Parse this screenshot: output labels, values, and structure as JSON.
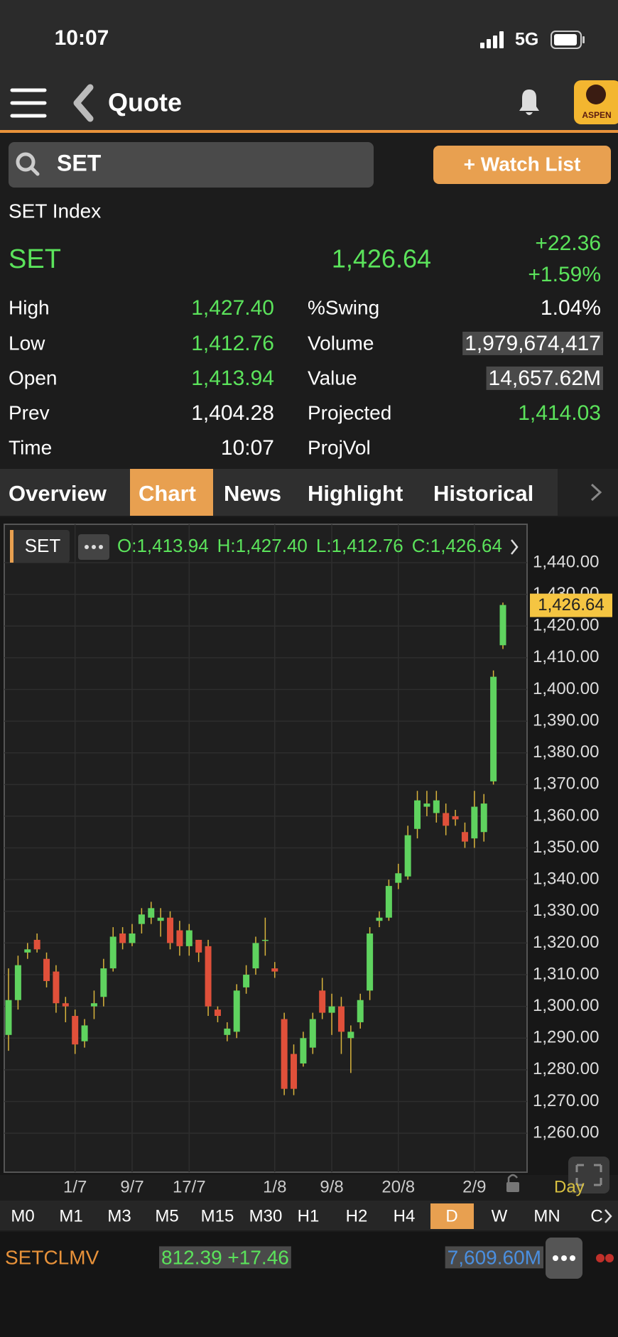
{
  "status_bar": {
    "time": "10:07",
    "network": "5G"
  },
  "nav": {
    "title": "Quote",
    "logo": "ASPEN"
  },
  "search": {
    "query": "SET",
    "button": "+ Watch List"
  },
  "quote": {
    "name": "SET Index",
    "symbol": "SET",
    "price": "1,426.64",
    "change": "+22.36",
    "change_pct": "+1.59%",
    "stats": [
      {
        "label": "High",
        "value": "1,427.40",
        "color": "#5be35b"
      },
      {
        "label": "%Swing",
        "value": "1.04%",
        "color": "#ffffff"
      },
      {
        "label": "Low",
        "value": "1,412.76",
        "color": "#5be35b"
      },
      {
        "label": "Volume",
        "value": "1,979,674,417",
        "color": "#ffffff",
        "highlight": true
      },
      {
        "label": "Open",
        "value": "1,413.94",
        "color": "#5be35b"
      },
      {
        "label": "Value",
        "value": "14,657.62M",
        "color": "#ffffff",
        "highlight": true
      },
      {
        "label": "Prev",
        "value": "1,404.28",
        "color": "#ffffff"
      },
      {
        "label": "Projected",
        "value": "1,414.03",
        "color": "#5be35b"
      },
      {
        "label": "Time",
        "value": "10:07",
        "color": "#ffffff"
      },
      {
        "label": "ProjVol"
      }
    ]
  },
  "tabs": [
    "Overview",
    "Chart",
    "News",
    "Highlight",
    "Historical"
  ],
  "chart_data": {
    "type": "candlestick",
    "symbol": "SET",
    "legend_ohlc": [
      "O:1,413.94",
      "H:1,427.40",
      "L:1,412.76",
      "C:1,426.64"
    ],
    "categories": [
      null,
      null,
      null,
      null,
      null,
      null,
      null,
      "1/7",
      null,
      null,
      null,
      null,
      null,
      "9/7",
      null,
      null,
      null,
      null,
      null,
      "17/7",
      null,
      null,
      null,
      null,
      null,
      null,
      null,
      null,
      "1/8",
      null,
      null,
      null,
      null,
      null,
      "9/8",
      null,
      null,
      null,
      null,
      null,
      null,
      "20/8",
      null,
      null,
      null,
      null,
      null,
      null,
      null,
      "2/9",
      null,
      null,
      null
    ],
    "open": [
      1291,
      1302,
      1317,
      1321,
      1315,
      1311,
      1301,
      1297,
      1289,
      1300,
      1303,
      1312,
      1323,
      1320,
      1326,
      1328,
      1327,
      1328,
      1324,
      1319,
      1321,
      1319,
      1299,
      1291,
      1292,
      1306,
      1312,
      1321,
      1312,
      1296,
      1285,
      1282,
      1287,
      1305,
      1298,
      1300,
      1290,
      1295,
      1305,
      1327,
      1328,
      1339,
      1341,
      1356,
      1363,
      1361,
      1361,
      1360,
      1355,
      1353,
      1355,
      1371,
      1413.94
    ],
    "high": [
      1312,
      1316,
      1320,
      1323,
      1317,
      1313,
      1303,
      1299,
      1296,
      1305,
      1315,
      1325,
      1325,
      1326,
      1331,
      1333,
      1331,
      1330,
      1327,
      1326,
      1321,
      1321,
      1300,
      1295,
      1307,
      1313,
      1322,
      1328,
      1314,
      1298,
      1288,
      1292,
      1298,
      1309,
      1304,
      1303,
      1294,
      1304,
      1325,
      1330,
      1340,
      1345,
      1357,
      1368,
      1368,
      1368,
      1364,
      1362,
      1358,
      1368,
      1367,
      1406,
      1427.4
    ],
    "low": [
      1286,
      1299,
      1315,
      1317,
      1306,
      1298,
      1295,
      1285,
      1287,
      1296,
      1300,
      1311,
      1318,
      1319,
      1323,
      1326,
      1322,
      1318,
      1316,
      1316,
      1314,
      1297,
      1295,
      1289,
      1290,
      1304,
      1310,
      1316,
      1309,
      1272,
      1272,
      1281,
      1285,
      1296,
      1291,
      1285,
      1279,
      1293,
      1302,
      1325,
      1327,
      1337,
      1340,
      1353,
      1360,
      1358,
      1354,
      1357,
      1350,
      1350,
      1352,
      1370,
      1412.76
    ],
    "close": [
      1302,
      1313,
      1318,
      1318,
      1308,
      1301,
      1300,
      1288,
      1294,
      1301,
      1312,
      1322,
      1320,
      1323,
      1329,
      1331,
      1328,
      1320,
      1319,
      1324,
      1317,
      1300,
      1297,
      1293,
      1305,
      1310,
      1320,
      1321,
      1311,
      1274,
      1274,
      1290,
      1296,
      1298,
      1300,
      1292,
      1292,
      1302,
      1323,
      1328,
      1338,
      1342,
      1354,
      1365,
      1364,
      1365,
      1357,
      1359,
      1352,
      1363,
      1364,
      1404,
      1426.64
    ],
    "up_color": "#5fd35f",
    "down_color": "#e0503a",
    "wick_color": "#d9b43c",
    "ylim": [
      1247.7,
      1452.1
    ],
    "yticks": [
      {
        "value": 1260,
        "label": "1,260.00"
      },
      {
        "value": 1270,
        "label": "1,270.00"
      },
      {
        "value": 1280,
        "label": "1,280.00"
      },
      {
        "value": 1290,
        "label": "1,290.00"
      },
      {
        "value": 1300,
        "label": "1,300.00"
      },
      {
        "value": 1310,
        "label": "1,310.00"
      },
      {
        "value": 1320,
        "label": "1,320.00"
      },
      {
        "value": 1330,
        "label": "1,330.00"
      },
      {
        "value": 1340,
        "label": "1,340.00"
      },
      {
        "value": 1350,
        "label": "1,350.00"
      },
      {
        "value": 1360,
        "label": "1,360.00"
      },
      {
        "value": 1370,
        "label": "1,370.00"
      },
      {
        "value": 1380,
        "label": "1,380.00"
      },
      {
        "value": 1390,
        "label": "1,390.00"
      },
      {
        "value": 1400,
        "label": "1,400.00"
      },
      {
        "value": 1410,
        "label": "1,410.00"
      },
      {
        "value": 1420,
        "label": "1,420.00"
      },
      {
        "value": 1430,
        "label": "1,430.00"
      },
      {
        "value": 1440,
        "label": "1,440.00"
      }
    ],
    "last_price": {
      "value": 1426.64,
      "label": "1,426.64"
    },
    "grid": true,
    "period": "Day"
  },
  "periods": [
    "M0",
    "M1",
    "M3",
    "M5",
    "M15",
    "M30",
    "H1",
    "H2",
    "H4",
    "D",
    "W",
    "MN",
    "C"
  ],
  "ticker": {
    "symbol": "SETCLMV",
    "price_change": "812.39 +17.46",
    "value": "7,609.60M"
  }
}
